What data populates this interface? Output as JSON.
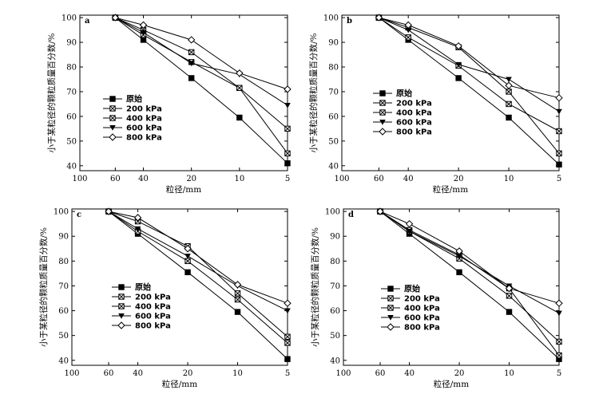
{
  "figure": {
    "legend_position": "left-middle"
  },
  "chart_data": [
    {
      "type": "line",
      "panel_label": "a",
      "xlabel": "粒径/mm",
      "ylabel": "小于某粒径的颗粒质量百分数/%",
      "x_scale": "log",
      "x_reversed": true,
      "xlim": [
        100,
        5
      ],
      "ylim": [
        38,
        101
      ],
      "x_ticks": [
        100,
        60,
        40,
        20,
        10,
        5
      ],
      "y_ticks": [
        40,
        50,
        60,
        70,
        80,
        90,
        100
      ],
      "x": [
        60,
        40,
        20,
        10,
        5
      ],
      "series": [
        {
          "name": "原始",
          "marker": "square",
          "values": [
            100,
            91,
            75.5,
            59.5,
            41
          ]
        },
        {
          "name": "200 kPa",
          "marker": "crossed-square",
          "values": [
            100,
            93,
            82,
            71.5,
            55
          ]
        },
        {
          "name": "400 kPa",
          "marker": "crossed-square",
          "values": [
            100,
            95,
            86,
            71.5,
            45
          ]
        },
        {
          "name": "600 kPa",
          "marker": "triangle-down",
          "values": [
            100,
            94,
            81.5,
            77,
            64.5
          ]
        },
        {
          "name": "800 kPa",
          "marker": "diamond",
          "values": [
            100,
            97,
            91,
            77.5,
            71
          ]
        }
      ]
    },
    {
      "type": "line",
      "panel_label": "b",
      "xlabel": "粒径/mm",
      "ylabel": "小于某粒径的颗粒质量百分数/%",
      "x_scale": "log",
      "x_reversed": true,
      "xlim": [
        100,
        5
      ],
      "ylim": [
        38,
        101
      ],
      "x_ticks": [
        100,
        60,
        40,
        20,
        10,
        5
      ],
      "y_ticks": [
        40,
        50,
        60,
        70,
        80,
        90,
        100
      ],
      "x": [
        60,
        40,
        20,
        10,
        5
      ],
      "series": [
        {
          "name": "原始",
          "marker": "square",
          "values": [
            100,
            91,
            75.5,
            59.5,
            40.5
          ]
        },
        {
          "name": "200 kPa",
          "marker": "crossed-square",
          "values": [
            100,
            92,
            80.5,
            65,
            54
          ]
        },
        {
          "name": "400 kPa",
          "marker": "crossed-square",
          "values": [
            100,
            96,
            88,
            70,
            45
          ]
        },
        {
          "name": "600 kPa",
          "marker": "triangle-down",
          "values": [
            100,
            95,
            81,
            75,
            62
          ]
        },
        {
          "name": "800 kPa",
          "marker": "diamond",
          "values": [
            100,
            97,
            88.5,
            72.5,
            67.5
          ]
        }
      ]
    },
    {
      "type": "line",
      "panel_label": "c",
      "xlabel": "粒径/mm",
      "ylabel": "小于某粒径的颗粒质量百分数/%",
      "x_scale": "log",
      "x_reversed": true,
      "xlim": [
        100,
        5
      ],
      "ylim": [
        38,
        101
      ],
      "x_ticks": [
        100,
        60,
        40,
        20,
        10,
        5
      ],
      "y_ticks": [
        40,
        50,
        60,
        70,
        80,
        90,
        100
      ],
      "x": [
        60,
        40,
        20,
        10,
        5
      ],
      "series": [
        {
          "name": "原始",
          "marker": "square",
          "values": [
            100,
            91,
            75.5,
            59.5,
            40.5
          ]
        },
        {
          "name": "200 kPa",
          "marker": "crossed-square",
          "values": [
            100,
            92,
            80,
            64.5,
            47
          ]
        },
        {
          "name": "400 kPa",
          "marker": "crossed-square",
          "values": [
            100,
            96,
            86,
            67,
            49.5
          ]
        },
        {
          "name": "600 kPa",
          "marker": "triangle-down",
          "values": [
            100,
            93,
            82,
            70,
            60
          ]
        },
        {
          "name": "800 kPa",
          "marker": "diamond",
          "values": [
            100,
            97.5,
            85,
            70.5,
            63
          ]
        }
      ]
    },
    {
      "type": "line",
      "panel_label": "d",
      "xlabel": "粒径/mm",
      "ylabel": "小于某粒径的颗粒质量百分数/%",
      "x_scale": "log",
      "x_reversed": true,
      "xlim": [
        100,
        5
      ],
      "ylim": [
        38,
        101
      ],
      "x_ticks": [
        100,
        60,
        40,
        20,
        10,
        5
      ],
      "y_ticks": [
        40,
        50,
        60,
        70,
        80,
        90,
        100
      ],
      "x": [
        60,
        40,
        20,
        10,
        5
      ],
      "series": [
        {
          "name": "原始",
          "marker": "square",
          "values": [
            100,
            91,
            75.5,
            59.5,
            40.5
          ]
        },
        {
          "name": "200 kPa",
          "marker": "crossed-square",
          "values": [
            100,
            92,
            81,
            66,
            47.5
          ]
        },
        {
          "name": "400 kPa",
          "marker": "crossed-square",
          "values": [
            100,
            92.5,
            82.5,
            69,
            42
          ]
        },
        {
          "name": "600 kPa",
          "marker": "triangle-down",
          "values": [
            100,
            92,
            82,
            70,
            59
          ]
        },
        {
          "name": "800 kPa",
          "marker": "diamond",
          "values": [
            100,
            95,
            84,
            69,
            63
          ]
        }
      ]
    }
  ]
}
